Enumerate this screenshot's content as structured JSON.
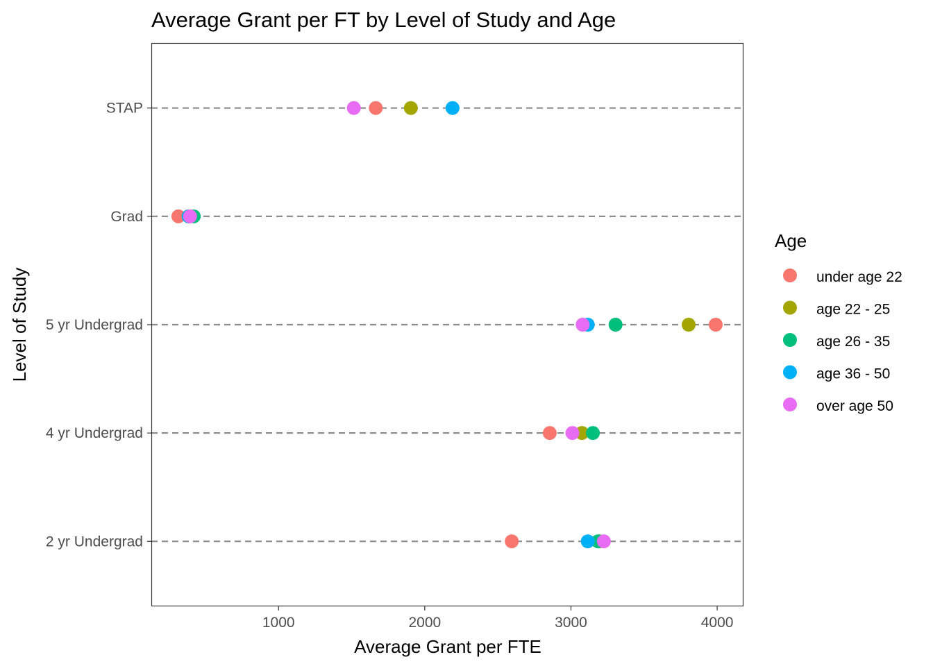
{
  "chart_data": {
    "type": "scatter",
    "title": "Average Grant per FT by Level of Study and Age",
    "xlabel": "Average Grant per FTE",
    "ylabel": "Level of Study",
    "xlim": [
      130,
      4180
    ],
    "x_ticks": [
      1000,
      2000,
      3000,
      4000
    ],
    "categories": [
      "STAP",
      "Grad",
      "5 yr Undergrad",
      "4 yr Undergrad",
      "2 yr Undergrad"
    ],
    "grid": false,
    "category_guides": "dashed",
    "legend": {
      "title": "Age",
      "position": "right"
    },
    "series": [
      {
        "name": "under age 22",
        "color": "#F8766D",
        "values": [
          1665,
          315,
          3990,
          2855,
          2595
        ]
      },
      {
        "name": "age 22 - 25",
        "color": "#A3A500",
        "values": [
          1905,
          385,
          3805,
          3075,
          3195
        ]
      },
      {
        "name": "age 26 - 35",
        "color": "#00BF7D",
        "values": [
          null,
          420,
          3305,
          3150,
          3185
        ]
      },
      {
        "name": "age 36 - 50",
        "color": "#00B0F6",
        "values": [
          2190,
          385,
          3115,
          null,
          3115
        ]
      },
      {
        "name": "over age 50",
        "color": "#E76BF3",
        "values": [
          1515,
          395,
          3080,
          3010,
          3225
        ]
      }
    ]
  }
}
